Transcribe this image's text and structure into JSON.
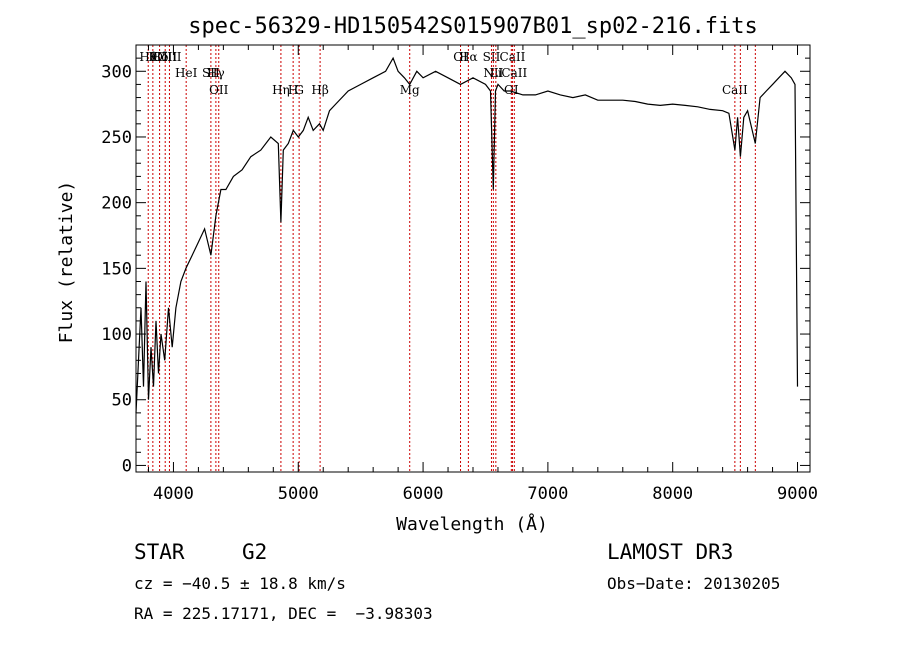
{
  "chart_data": {
    "type": "line",
    "title": "spec-56329-HD150542S015907B01_sp02-216.fits",
    "xlabel": "Wavelength (Å)",
    "ylabel": "Flux (relative)",
    "xlim": [
      3700,
      9100
    ],
    "ylim": [
      -5,
      320
    ],
    "xticks": [
      4000,
      5000,
      6000,
      7000,
      8000,
      9000
    ],
    "yticks": [
      0,
      50,
      100,
      150,
      200,
      250,
      300
    ],
    "grid": false,
    "line_color": "#000000",
    "marker_color": "#cc0000",
    "spectrum": {
      "name": "",
      "x": [
        3700,
        3720,
        3740,
        3760,
        3780,
        3800,
        3820,
        3840,
        3860,
        3880,
        3900,
        3930,
        3960,
        3990,
        4020,
        4060,
        4100,
        4150,
        4200,
        4250,
        4300,
        4340,
        4380,
        4420,
        4480,
        4550,
        4620,
        4700,
        4780,
        4840,
        4861,
        4880,
        4920,
        4960,
        5000,
        5040,
        5080,
        5120,
        5170,
        5200,
        5250,
        5300,
        5400,
        5500,
        5600,
        5700,
        5760,
        5800,
        5850,
        5893,
        5950,
        6000,
        6100,
        6200,
        6300,
        6400,
        6500,
        6540,
        6563,
        6580,
        6600,
        6650,
        6700,
        6800,
        6900,
        7000,
        7100,
        7200,
        7300,
        7400,
        7500,
        7600,
        7700,
        7800,
        7900,
        8000,
        8100,
        8200,
        8300,
        8400,
        8450,
        8498,
        8520,
        8542,
        8570,
        8600,
        8662,
        8700,
        8750,
        8800,
        8850,
        8900,
        8950,
        8980,
        9000
      ],
      "y": [
        40,
        80,
        120,
        60,
        140,
        50,
        90,
        60,
        110,
        70,
        100,
        80,
        120,
        90,
        120,
        140,
        150,
        160,
        170,
        180,
        160,
        190,
        210,
        210,
        220,
        225,
        235,
        240,
        250,
        245,
        185,
        240,
        245,
        255,
        250,
        255,
        265,
        255,
        260,
        255,
        270,
        275,
        285,
        290,
        295,
        300,
        310,
        300,
        295,
        290,
        300,
        295,
        300,
        295,
        290,
        295,
        290,
        285,
        210,
        285,
        290,
        285,
        285,
        282,
        282,
        285,
        282,
        280,
        282,
        278,
        278,
        278,
        277,
        275,
        274,
        275,
        274,
        273,
        271,
        270,
        268,
        240,
        265,
        235,
        265,
        270,
        245,
        280,
        285,
        290,
        295,
        300,
        295,
        290,
        60
      ]
    },
    "line_markers": [
      {
        "x": 3798,
        "label": "Hθ",
        "row": 0
      },
      {
        "x": 3835,
        "label": "K",
        "row": 0
      },
      {
        "x": 3889,
        "label": "Hδ",
        "row": 0
      },
      {
        "x": 3934,
        "label": "OIII",
        "row": 0
      },
      {
        "x": 3968,
        "label": "OIII",
        "row": 0
      },
      {
        "x": 4102,
        "label": "HeI",
        "row": 1
      },
      {
        "x": 4300,
        "label": "SII",
        "row": 1
      },
      {
        "x": 4340,
        "label": "Hγ",
        "row": 1
      },
      {
        "x": 4363,
        "label": "OII",
        "row": 2
      },
      {
        "x": 4861,
        "label": "Hη",
        "row": 2
      },
      {
        "x": 4959,
        "label": "H",
        "row": 2
      },
      {
        "x": 5007,
        "label": "G",
        "row": 2
      },
      {
        "x": 5175,
        "label": "Hβ",
        "row": 2
      },
      {
        "x": 5893,
        "label": "Mg",
        "row": 2
      },
      {
        "x": 6300,
        "label": "OI",
        "row": 0
      },
      {
        "x": 6363,
        "label": "Hα",
        "row": 0
      },
      {
        "x": 6548,
        "label": "SII",
        "row": 0
      },
      {
        "x": 6563,
        "label": "NII",
        "row": 1
      },
      {
        "x": 6583,
        "label": "Li",
        "row": 1
      },
      {
        "x": 6707,
        "label": "OI",
        "row": 2
      },
      {
        "x": 6716,
        "label": "CaII",
        "row": 0
      },
      {
        "x": 6731,
        "label": "CaII",
        "row": 1
      },
      {
        "x": 8498,
        "label": "CaII",
        "row": 2
      },
      {
        "x": 8542,
        "label": "",
        "row": 0
      },
      {
        "x": 8662,
        "label": "",
        "row": 0
      }
    ]
  },
  "info": {
    "class": "STAR",
    "subclass": "G2",
    "survey": "LAMOST DR3",
    "cz": "cz = −40.5 ± 18.8 km/s",
    "obs_date": "Obs−Date: 20130205",
    "coords": "RA = 225.17171, DEC =  −3.98303"
  }
}
